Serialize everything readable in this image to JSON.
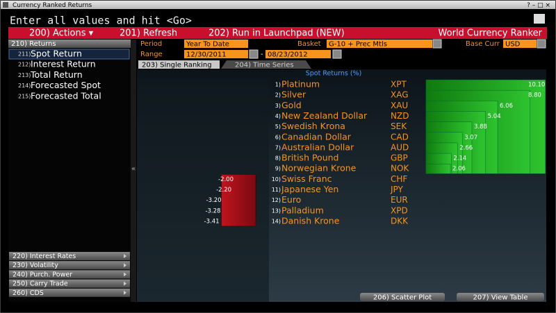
{
  "window": {
    "title": "Currency Ranked Returns",
    "controls": "? – □ ×"
  },
  "prompt": "Enter all values and hit <Go>",
  "toolbar": {
    "actions": "200) Actions ▾",
    "refresh": "201) Refresh",
    "launchpad": "202) Run in Launchpad (NEW)",
    "app_name": "World Currency Ranker"
  },
  "sidebar": {
    "header": "210) Returns",
    "items": [
      {
        "num": "211)",
        "label": "Spot Return"
      },
      {
        "num": "212)",
        "label": "Interest Return"
      },
      {
        "num": "213)",
        "label": "Total Return"
      },
      {
        "num": "214)",
        "label": "Forecasted Spot"
      },
      {
        "num": "215)",
        "label": "Forecasted Total"
      }
    ],
    "footer": [
      "220) Interest Rates",
      "230) Volatility",
      "240) Purch. Power",
      "250) Carry Trade",
      "260) CDS"
    ]
  },
  "form": {
    "period_label": "Period",
    "period": "Year To Date",
    "basket_label": "Basket",
    "basket": "G-10 + Prec Mtls",
    "base_label": "Base Curr",
    "base": "USD",
    "range_label": "Range",
    "start": "12/30/2011",
    "dash": "-",
    "end": "08/23/2012"
  },
  "tabs": [
    "203) Single Ranking",
    "204) Time Series"
  ],
  "ranking": {
    "title": "Spot Returns (%)",
    "rows": [
      {
        "rank": "1)",
        "name": "Platinum",
        "code": "XPT",
        "value": 10.1,
        "value_label": "10.10"
      },
      {
        "rank": "2)",
        "name": "Silver",
        "code": "XAG",
        "value": 8.8,
        "value_label": "8.80"
      },
      {
        "rank": "3)",
        "name": "Gold",
        "code": "XAU",
        "value": 6.06,
        "value_label": "6.06"
      },
      {
        "rank": "4)",
        "name": "New Zealand Dollar",
        "code": "NZD",
        "value": 5.04,
        "value_label": "5.04"
      },
      {
        "rank": "5)",
        "name": "Swedish Krona",
        "code": "SEK",
        "value": 3.88,
        "value_label": "3.88"
      },
      {
        "rank": "6)",
        "name": "Canadian Dollar",
        "code": "CAD",
        "value": 3.07,
        "value_label": "3.07"
      },
      {
        "rank": "7)",
        "name": "Australian Dollar",
        "code": "AUD",
        "value": 2.66,
        "value_label": "2.66"
      },
      {
        "rank": "8)",
        "name": "British Pound",
        "code": "GBP",
        "value": 2.14,
        "value_label": "2.14"
      },
      {
        "rank": "9)",
        "name": "Norwegian Krone",
        "code": "NOK",
        "value": 2.06,
        "value_label": "2.06"
      },
      {
        "rank": "10)",
        "name": "Swiss Franc",
        "code": "CHF",
        "value": -2.0,
        "value_label": "-2.00"
      },
      {
        "rank": "11)",
        "name": "Japanese Yen",
        "code": "JPY",
        "value": -2.2,
        "value_label": "-2.20"
      },
      {
        "rank": "12)",
        "name": "Euro",
        "code": "EUR",
        "value": -3.2,
        "value_label": "-3.20"
      },
      {
        "rank": "13)",
        "name": "Palladium",
        "code": "XPD",
        "value": -3.28,
        "value_label": "-3.28"
      },
      {
        "rank": "14)",
        "name": "Danish Krone",
        "code": "DKK",
        "value": -3.41,
        "value_label": "-3.41"
      }
    ]
  },
  "buttons": [
    "206) Scatter Plot",
    "207) View Table"
  ]
}
